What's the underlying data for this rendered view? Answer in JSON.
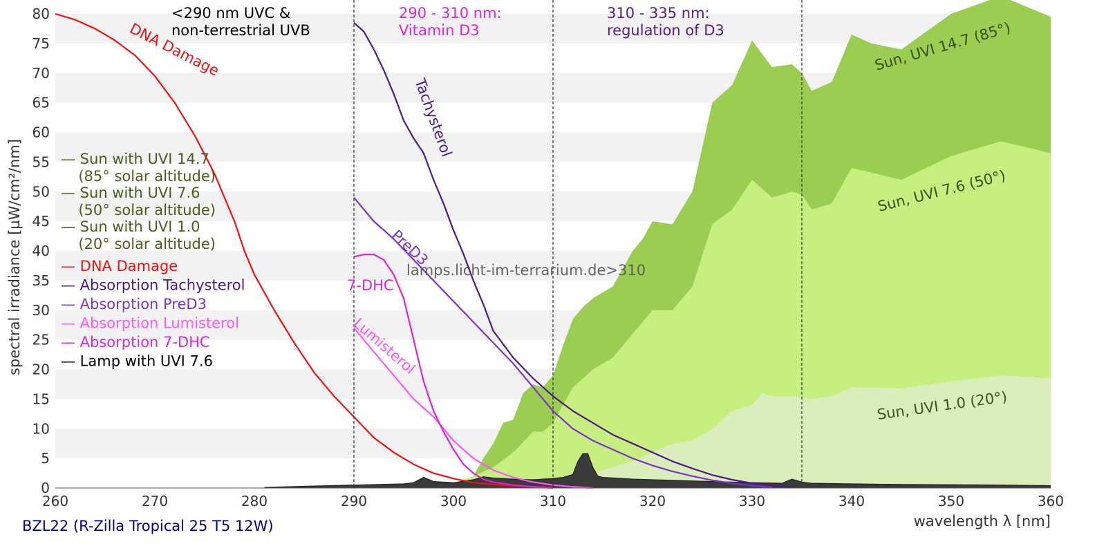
{
  "chart_data": {
    "type": "area",
    "xlabel": "wavelength λ [nm]",
    "ylabel": "spectral irradiance [µW/cm²/nm]",
    "xlim": [
      260,
      360
    ],
    "ylim": [
      0,
      80
    ],
    "xticks": [
      260,
      270,
      280,
      290,
      300,
      310,
      320,
      330,
      340,
      350,
      360
    ],
    "yticks": [
      0,
      5,
      10,
      15,
      20,
      25,
      30,
      35,
      40,
      45,
      50,
      55,
      60,
      65,
      70,
      75,
      80
    ],
    "grid": "horizontal bands",
    "legend_position": "left",
    "footer": "BZL22 (R-Zilla Tropical 25 T5 12W)",
    "watermark": "lamps.licht-im-terrarium.de>310",
    "region_dividers": [
      290,
      310,
      335
    ],
    "region_labels": [
      {
        "lines": [
          "<290 nm UVC &",
          "non-terrestrial UVB"
        ],
        "color": "#000000"
      },
      {
        "lines": [
          "290 - 310 nm:",
          "Vitamin D3"
        ],
        "color": "#dd22dd"
      },
      {
        "lines": [
          "310 - 335 nm:",
          "regulation of D3"
        ],
        "color": "#551a8b"
      }
    ],
    "legend": [
      {
        "lines": [
          "— Sun with UVI 14.7",
          "  (85° solar altitude)"
        ],
        "color": "#4a5e1f"
      },
      {
        "lines": [
          "— Sun with UVI 7.6",
          "  (50° solar altitude)"
        ],
        "color": "#4a5e1f"
      },
      {
        "lines": [
          "— Sun with UVI 1.0",
          "  (20° solar altitude)"
        ],
        "color": "#4a5e1f"
      },
      {
        "lines": [
          "— DNA Damage"
        ],
        "color": "#ee1111"
      },
      {
        "lines": [
          "— Absorption Tachysterol"
        ],
        "color": "#4b1a8a"
      },
      {
        "lines": [
          "— Absorption PreD3"
        ],
        "color": "#7a33cc"
      },
      {
        "lines": [
          "— Absorption Lumisterol"
        ],
        "color": "#ff55ff"
      },
      {
        "lines": [
          "— Absorption 7-DHC"
        ],
        "color": "#dd22dd"
      },
      {
        "lines": [
          "— Lamp with UVI 7.6"
        ],
        "color": "#000000"
      }
    ],
    "series": [
      {
        "name": "Sun, UVI 14.7 (85°)",
        "type": "area",
        "color": "#9acd52",
        "label": "Sun, UVI 14.7 (85°)",
        "points": [
          [
            301,
            0
          ],
          [
            302,
            2
          ],
          [
            303,
            5
          ],
          [
            304,
            7.5
          ],
          [
            305,
            11
          ],
          [
            306,
            11.5
          ],
          [
            307,
            16
          ],
          [
            308,
            17.5
          ],
          [
            309,
            17
          ],
          [
            310,
            19
          ],
          [
            311,
            24
          ],
          [
            312,
            28.5
          ],
          [
            313,
            30.5
          ],
          [
            314,
            32
          ],
          [
            315,
            33
          ],
          [
            316,
            34
          ],
          [
            317,
            37
          ],
          [
            318,
            40
          ],
          [
            319,
            42
          ],
          [
            320,
            45
          ],
          [
            322,
            44.5
          ],
          [
            324,
            50
          ],
          [
            326,
            65
          ],
          [
            328,
            68
          ],
          [
            330,
            75.5
          ],
          [
            332,
            71
          ],
          [
            334,
            71.5
          ],
          [
            335,
            70
          ],
          [
            336,
            67
          ],
          [
            338,
            68.5
          ],
          [
            340,
            76.5
          ],
          [
            342,
            75
          ],
          [
            345,
            74
          ],
          [
            350,
            80
          ],
          [
            355,
            83
          ],
          [
            360,
            79.5
          ]
        ]
      },
      {
        "name": "Sun, UVI 7.6 (50°)",
        "type": "area",
        "color": "#c6ef80",
        "label": "Sun, UVI 7.6 (50°)",
        "points": [
          [
            298,
            0
          ],
          [
            300,
            0.8
          ],
          [
            302,
            2
          ],
          [
            304,
            3.5
          ],
          [
            306,
            6
          ],
          [
            308,
            9.5
          ],
          [
            309,
            9.5
          ],
          [
            310,
            11
          ],
          [
            311,
            14
          ],
          [
            312,
            17
          ],
          [
            314,
            20
          ],
          [
            316,
            22
          ],
          [
            318,
            26
          ],
          [
            320,
            30
          ],
          [
            322,
            30
          ],
          [
            324,
            34
          ],
          [
            326,
            44.5
          ],
          [
            328,
            47
          ],
          [
            330,
            52
          ],
          [
            332,
            49
          ],
          [
            334,
            50
          ],
          [
            335,
            49.5
          ],
          [
            336,
            47
          ],
          [
            338,
            48
          ],
          [
            340,
            54
          ],
          [
            345,
            52
          ],
          [
            350,
            56
          ],
          [
            355,
            58.5
          ],
          [
            360,
            56.5
          ]
        ]
      },
      {
        "name": "Sun, UVI 1.0 (20°)",
        "type": "area",
        "color": "#daeebb",
        "label": "Sun, UVI 1.0 (20°)",
        "points": [
          [
            303,
            0
          ],
          [
            306,
            0.5
          ],
          [
            310,
            1.2
          ],
          [
            314,
            2.5
          ],
          [
            318,
            4.5
          ],
          [
            322,
            7.5
          ],
          [
            324,
            8
          ],
          [
            326,
            10
          ],
          [
            328,
            13
          ],
          [
            330,
            14
          ],
          [
            331,
            16
          ],
          [
            332,
            15.5
          ],
          [
            334,
            15.5
          ],
          [
            336,
            15
          ],
          [
            338,
            15.5
          ],
          [
            340,
            17
          ],
          [
            345,
            16.8
          ],
          [
            350,
            18
          ],
          [
            355,
            19
          ],
          [
            360,
            18.5
          ]
        ]
      },
      {
        "name": "Lamp with UVI 7.6",
        "type": "area",
        "color": "#3a3a3a",
        "points": [
          [
            281,
            0.1
          ],
          [
            285,
            0.3
          ],
          [
            290,
            0.5
          ],
          [
            295,
            0.7
          ],
          [
            296,
            0.9
          ],
          [
            297,
            1.8
          ],
          [
            298,
            1.1
          ],
          [
            300,
            0.9
          ],
          [
            302,
            1.4
          ],
          [
            303,
            1.9
          ],
          [
            304,
            1.7
          ],
          [
            306,
            1.5
          ],
          [
            308,
            1.4
          ],
          [
            310,
            1.6
          ],
          [
            311,
            1.8
          ],
          [
            312,
            2.3
          ],
          [
            312.5,
            4.5
          ],
          [
            313,
            5.8
          ],
          [
            313.5,
            5.8
          ],
          [
            314,
            3.5
          ],
          [
            314.5,
            2
          ],
          [
            315,
            1.8
          ],
          [
            318,
            1.5
          ],
          [
            322,
            1.3
          ],
          [
            326,
            1.1
          ],
          [
            330,
            0.9
          ],
          [
            333,
            0.8
          ],
          [
            334,
            1.5
          ],
          [
            335,
            1.0
          ],
          [
            336,
            0.8
          ],
          [
            340,
            0.7
          ],
          [
            345,
            0.6
          ],
          [
            350,
            0.55
          ],
          [
            355,
            0.5
          ],
          [
            360,
            0.4
          ]
        ]
      },
      {
        "name": "DNA Damage",
        "type": "line",
        "color": "#ee1111",
        "label": "DNA Damage",
        "points": [
          [
            260,
            80
          ],
          [
            262,
            79
          ],
          [
            264,
            77.5
          ],
          [
            266,
            75.5
          ],
          [
            268,
            73
          ],
          [
            270,
            69.5
          ],
          [
            272,
            65
          ],
          [
            274,
            59.5
          ],
          [
            276,
            53
          ],
          [
            278,
            45
          ],
          [
            279,
            40
          ],
          [
            280,
            36
          ],
          [
            282,
            30
          ],
          [
            284,
            24.5
          ],
          [
            286,
            19.5
          ],
          [
            288,
            15.5
          ],
          [
            290,
            12
          ],
          [
            292,
            8.5
          ],
          [
            294,
            6
          ],
          [
            296,
            4
          ],
          [
            298,
            2.5
          ],
          [
            300,
            1.6
          ],
          [
            302,
            0.9
          ],
          [
            304,
            0.6
          ],
          [
            306,
            0.35
          ],
          [
            310,
            0.1
          ]
        ]
      },
      {
        "name": "Absorption Tachysterol",
        "type": "line",
        "color": "#4b1a8a",
        "label": "Tachysterol",
        "points": [
          [
            290,
            78.5
          ],
          [
            291,
            77
          ],
          [
            292,
            74
          ],
          [
            293,
            70.5
          ],
          [
            294,
            66.5
          ],
          [
            295,
            62
          ],
          [
            296,
            59
          ],
          [
            297,
            56.5
          ],
          [
            298,
            52
          ],
          [
            299,
            48
          ],
          [
            300,
            43.5
          ],
          [
            301,
            39.5
          ],
          [
            302,
            35
          ],
          [
            303,
            31
          ],
          [
            304,
            26.5
          ],
          [
            306,
            22
          ],
          [
            308,
            18.5
          ],
          [
            310,
            15.5
          ],
          [
            312,
            13
          ],
          [
            314,
            11
          ],
          [
            316,
            9
          ],
          [
            318,
            7.5
          ],
          [
            320,
            6
          ],
          [
            322,
            4.5
          ],
          [
            324,
            3.3
          ],
          [
            326,
            2.2
          ],
          [
            328,
            1.4
          ],
          [
            330,
            0.8
          ],
          [
            332,
            0.4
          ],
          [
            334,
            0.1
          ]
        ]
      },
      {
        "name": "Absorption PreD3",
        "type": "line",
        "color": "#7a33cc",
        "label": "PreD3",
        "points": [
          [
            290,
            49
          ],
          [
            292,
            45
          ],
          [
            294,
            42
          ],
          [
            296,
            38.5
          ],
          [
            298,
            35
          ],
          [
            300,
            31.5
          ],
          [
            302,
            28
          ],
          [
            304,
            24.5
          ],
          [
            306,
            21
          ],
          [
            308,
            17
          ],
          [
            310,
            13
          ],
          [
            312,
            10
          ],
          [
            314,
            8
          ],
          [
            316,
            6.5
          ],
          [
            318,
            5
          ],
          [
            320,
            3.8
          ],
          [
            322,
            2.8
          ],
          [
            324,
            2
          ],
          [
            326,
            1.3
          ],
          [
            328,
            0.8
          ],
          [
            330,
            0.4
          ],
          [
            332,
            0.1
          ]
        ]
      },
      {
        "name": "Absorption Lumisterol",
        "type": "line",
        "color": "#ff55ff",
        "label": "Lumisterol",
        "points": [
          [
            290,
            27
          ],
          [
            292,
            23
          ],
          [
            294,
            19
          ],
          [
            296,
            15
          ],
          [
            298,
            12
          ],
          [
            300,
            8
          ],
          [
            302,
            5
          ],
          [
            304,
            3
          ],
          [
            306,
            1.8
          ],
          [
            308,
            1
          ],
          [
            310,
            0.5
          ],
          [
            312,
            0.2
          ],
          [
            314,
            0
          ]
        ]
      },
      {
        "name": "Absorption 7-DHC",
        "type": "line",
        "color": "#dd22dd",
        "label": "7-DHC",
        "points": [
          [
            290,
            39
          ],
          [
            291,
            39.4
          ],
          [
            292,
            39.4
          ],
          [
            293,
            38.5
          ],
          [
            294,
            36
          ],
          [
            295,
            32
          ],
          [
            296,
            25
          ],
          [
            297,
            18
          ],
          [
            298,
            13
          ],
          [
            299,
            9.5
          ],
          [
            300,
            6.5
          ],
          [
            301,
            4
          ],
          [
            302,
            2.5
          ],
          [
            303,
            1.5
          ],
          [
            304,
            1
          ],
          [
            306,
            0.5
          ],
          [
            308,
            0.2
          ],
          [
            310,
            0
          ]
        ]
      }
    ]
  }
}
